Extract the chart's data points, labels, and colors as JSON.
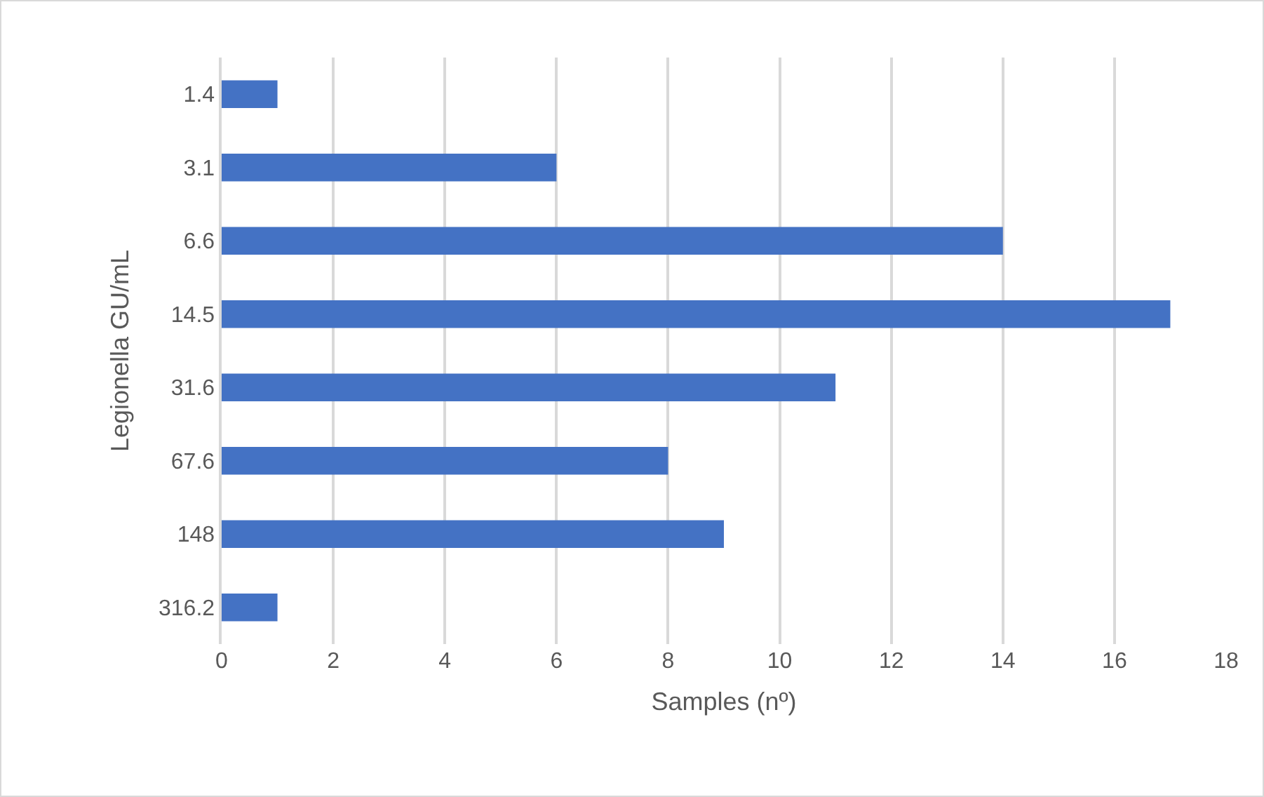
{
  "chart_data": {
    "type": "bar",
    "orientation": "horizontal",
    "xlabel": "Samples (nº)",
    "ylabel": "Legionella GU/mL",
    "categories": [
      "1.4",
      "3.1",
      "6.6",
      "14.5",
      "31.6",
      "67.6",
      "148",
      "316.2"
    ],
    "values": [
      1,
      6,
      14,
      17,
      11,
      8,
      9,
      1
    ],
    "color": "#4472c4",
    "xlim": [
      0,
      18
    ],
    "xticks": [
      0,
      2,
      4,
      6,
      8,
      10,
      12,
      14,
      16,
      18
    ],
    "grid": "x"
  }
}
